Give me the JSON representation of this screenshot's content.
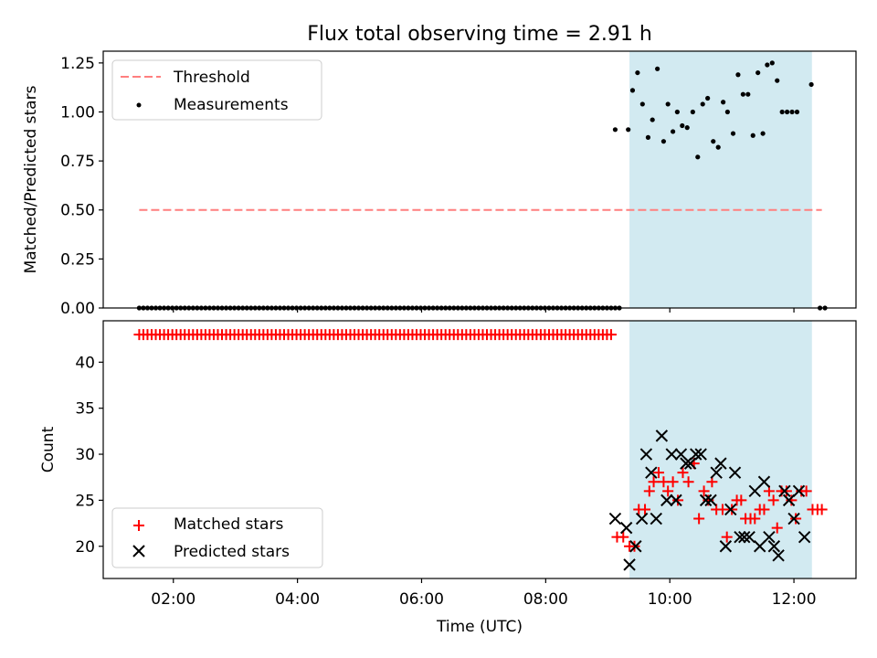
{
  "chart_data": {
    "title": "Flux total observing time = 2.91 h",
    "xlabel": "Time (UTC)",
    "x_ticks": [
      "02:00",
      "04:00",
      "06:00",
      "08:00",
      "10:00",
      "12:00"
    ],
    "x_range_hours": [
      0.87,
      13.0
    ],
    "shaded_interval_hours": [
      9.35,
      12.29
    ],
    "shade_color": "#add8e6",
    "panels": [
      {
        "type": "scatter",
        "ylabel": "Matched/Predicted stars",
        "ylim": [
          0,
          1.31
        ],
        "y_ticks": [
          "0.00",
          "0.25",
          "0.50",
          "0.75",
          "1.00",
          "1.25"
        ],
        "legend_position": "top-left",
        "threshold": {
          "name": "Threshold",
          "value": 0.5,
          "x_start": 1.45,
          "x_end": 12.45,
          "color": "#ff7f7f"
        },
        "measurements": {
          "name": "Measurements",
          "color": "#000000",
          "zeros_start": 1.45,
          "zeros_end": 9.25,
          "zeros_step": 0.0667,
          "tail_zeros": [
            12.42,
            12.5
          ],
          "points": [
            [
              9.12,
              0.91
            ],
            [
              9.33,
              0.91
            ],
            [
              9.4,
              1.11
            ],
            [
              9.48,
              1.2
            ],
            [
              9.56,
              1.04
            ],
            [
              9.65,
              0.87
            ],
            [
              9.72,
              0.96
            ],
            [
              9.8,
              1.22
            ],
            [
              9.9,
              0.85
            ],
            [
              9.97,
              1.04
            ],
            [
              10.05,
              0.9
            ],
            [
              10.12,
              1.0
            ],
            [
              10.2,
              0.93
            ],
            [
              10.28,
              0.92
            ],
            [
              10.37,
              1.0
            ],
            [
              10.45,
              0.77
            ],
            [
              10.53,
              1.04
            ],
            [
              10.61,
              1.07
            ],
            [
              10.7,
              0.85
            ],
            [
              10.78,
              0.82
            ],
            [
              10.86,
              1.05
            ],
            [
              10.93,
              1.0
            ],
            [
              11.02,
              0.89
            ],
            [
              11.1,
              1.19
            ],
            [
              11.18,
              1.09
            ],
            [
              11.26,
              1.09
            ],
            [
              11.34,
              0.88
            ],
            [
              11.42,
              1.2
            ],
            [
              11.5,
              0.89
            ],
            [
              11.57,
              1.24
            ],
            [
              11.65,
              1.25
            ],
            [
              11.73,
              1.16
            ],
            [
              11.81,
              1.0
            ],
            [
              11.89,
              1.0
            ],
            [
              11.97,
              1.0
            ],
            [
              12.05,
              1.0
            ],
            [
              12.28,
              1.14
            ]
          ]
        }
      },
      {
        "type": "scatter",
        "ylabel": "Count",
        "ylim": [
          16.5,
          44.5
        ],
        "y_ticks": [
          "20",
          "25",
          "30",
          "35",
          "40"
        ],
        "legend_position": "bottom-left",
        "series": [
          {
            "name": "Matched stars",
            "marker": "plus",
            "color": "#ff0000",
            "constant_run": {
              "x_start": 1.45,
              "x_end": 9.12,
              "step": 0.0667,
              "y": 43
            },
            "points": [
              [
                9.15,
                21
              ],
              [
                9.25,
                21
              ],
              [
                9.35,
                20
              ],
              [
                9.43,
                20
              ],
              [
                9.5,
                24
              ],
              [
                9.6,
                24
              ],
              [
                9.67,
                26
              ],
              [
                9.74,
                27
              ],
              [
                9.82,
                28
              ],
              [
                9.9,
                27
              ],
              [
                9.97,
                26
              ],
              [
                10.05,
                27
              ],
              [
                10.13,
                25
              ],
              [
                10.21,
                28
              ],
              [
                10.3,
                27
              ],
              [
                10.39,
                29
              ],
              [
                10.47,
                23
              ],
              [
                10.55,
                26
              ],
              [
                10.62,
                25
              ],
              [
                10.68,
                27
              ],
              [
                10.75,
                24
              ],
              [
                10.85,
                24
              ],
              [
                10.92,
                21
              ],
              [
                11.0,
                24
              ],
              [
                11.08,
                25
              ],
              [
                11.15,
                25
              ],
              [
                11.22,
                23
              ],
              [
                11.3,
                23
              ],
              [
                11.37,
                23
              ],
              [
                11.45,
                24
              ],
              [
                11.52,
                24
              ],
              [
                11.6,
                26
              ],
              [
                11.67,
                25
              ],
              [
                11.73,
                22
              ],
              [
                11.8,
                26
              ],
              [
                11.88,
                26
              ],
              [
                11.96,
                25
              ],
              [
                12.03,
                23
              ],
              [
                12.12,
                26
              ],
              [
                12.2,
                26
              ],
              [
                12.3,
                24
              ],
              [
                12.38,
                24
              ],
              [
                12.45,
                24
              ]
            ]
          },
          {
            "name": "Predicted stars",
            "marker": "x",
            "color": "#000000",
            "points": [
              [
                9.12,
                23
              ],
              [
                9.3,
                22
              ],
              [
                9.35,
                18
              ],
              [
                9.45,
                20
              ],
              [
                9.55,
                23
              ],
              [
                9.62,
                30
              ],
              [
                9.7,
                28
              ],
              [
                9.78,
                23
              ],
              [
                9.87,
                32
              ],
              [
                9.95,
                25
              ],
              [
                10.03,
                30
              ],
              [
                10.1,
                25
              ],
              [
                10.18,
                30
              ],
              [
                10.26,
                29
              ],
              [
                10.33,
                29
              ],
              [
                10.42,
                30
              ],
              [
                10.5,
                30
              ],
              [
                10.58,
                25
              ],
              [
                10.66,
                25
              ],
              [
                10.75,
                28
              ],
              [
                10.82,
                29
              ],
              [
                10.9,
                20
              ],
              [
                10.98,
                24
              ],
              [
                11.05,
                28
              ],
              [
                11.13,
                21
              ],
              [
                11.2,
                21
              ],
              [
                11.28,
                21
              ],
              [
                11.37,
                26
              ],
              [
                11.45,
                20
              ],
              [
                11.52,
                27
              ],
              [
                11.6,
                21
              ],
              [
                11.68,
                20
              ],
              [
                11.75,
                19
              ],
              [
                11.85,
                26
              ],
              [
                11.92,
                25
              ],
              [
                12.0,
                23
              ],
              [
                12.08,
                26
              ],
              [
                12.17,
                21
              ]
            ]
          }
        ]
      }
    ]
  }
}
